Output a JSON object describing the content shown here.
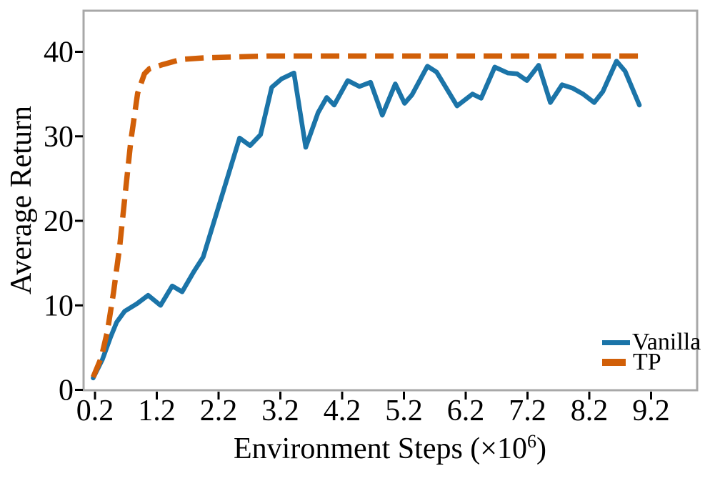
{
  "figure": {
    "background": "#ffffff",
    "frame_color": "#a8a8a8",
    "tick_color": "#000000",
    "text_color": "#000000"
  },
  "axis": {
    "ylabel": "Average Return",
    "xlabel_prefix": "Environment Steps (×10",
    "xlabel_sup": "6",
    "xlabel_suffix": ")"
  },
  "legend": {
    "items": [
      {
        "label": "Vanilla",
        "color": "#1b74a8",
        "style": "solid"
      },
      {
        "label": "TP",
        "color": "#d15f08",
        "style": "dashed"
      }
    ]
  },
  "chart_data": {
    "type": "line",
    "title": "",
    "xlabel": "Environment Steps (×10^6)",
    "ylabel": "Average Return",
    "xlim": [
      0.0,
      10.0
    ],
    "ylim": [
      0,
      44.9
    ],
    "xticks": [
      0.2,
      1.2,
      2.2,
      3.2,
      4.2,
      5.2,
      6.2,
      7.2,
      8.2,
      9.2
    ],
    "yticks": [
      0,
      10,
      20,
      30,
      40
    ],
    "grid": false,
    "legend_position": "lower right",
    "series": [
      {
        "name": "Vanilla",
        "color": "#1b74a8",
        "style": "solid",
        "line_width": 6.5,
        "points": [
          [
            0.17,
            1.4
          ],
          [
            0.32,
            3.6
          ],
          [
            0.45,
            6.2
          ],
          [
            0.55,
            8.0
          ],
          [
            0.68,
            9.3
          ],
          [
            0.88,
            10.2
          ],
          [
            1.06,
            11.2
          ],
          [
            1.26,
            10.0
          ],
          [
            1.45,
            12.3
          ],
          [
            1.61,
            11.6
          ],
          [
            1.8,
            14.0
          ],
          [
            1.95,
            15.7
          ],
          [
            2.54,
            29.8
          ],
          [
            2.71,
            28.9
          ],
          [
            2.88,
            30.2
          ],
          [
            3.06,
            35.8
          ],
          [
            3.22,
            36.8
          ],
          [
            3.42,
            37.5
          ],
          [
            3.61,
            28.7
          ],
          [
            3.81,
            32.8
          ],
          [
            3.95,
            34.6
          ],
          [
            4.07,
            33.7
          ],
          [
            4.29,
            36.6
          ],
          [
            4.48,
            35.9
          ],
          [
            4.66,
            36.4
          ],
          [
            4.85,
            32.5
          ],
          [
            5.06,
            36.2
          ],
          [
            5.21,
            33.9
          ],
          [
            5.33,
            34.9
          ],
          [
            5.58,
            38.3
          ],
          [
            5.73,
            37.6
          ],
          [
            6.06,
            33.6
          ],
          [
            6.31,
            35.0
          ],
          [
            6.45,
            34.5
          ],
          [
            6.67,
            38.2
          ],
          [
            6.88,
            37.5
          ],
          [
            7.03,
            37.4
          ],
          [
            7.19,
            36.6
          ],
          [
            7.38,
            38.4
          ],
          [
            7.57,
            34.0
          ],
          [
            7.76,
            36.1
          ],
          [
            7.93,
            35.7
          ],
          [
            8.1,
            35.0
          ],
          [
            8.28,
            34.0
          ],
          [
            8.42,
            35.3
          ],
          [
            8.64,
            38.9
          ],
          [
            8.78,
            37.7
          ],
          [
            9.01,
            33.7
          ]
        ]
      },
      {
        "name": "TP",
        "color": "#d15f08",
        "style": "dashed",
        "line_width": 7.5,
        "dash": [
          26,
          12
        ],
        "points": [
          [
            0.17,
            1.5
          ],
          [
            0.3,
            3.8
          ],
          [
            0.4,
            6.9
          ],
          [
            0.5,
            11.5
          ],
          [
            0.6,
            17.0
          ],
          [
            0.7,
            24.0
          ],
          [
            0.78,
            29.5
          ],
          [
            0.89,
            35.1
          ],
          [
            1.0,
            37.4
          ],
          [
            1.08,
            38.0
          ],
          [
            1.3,
            38.5
          ],
          [
            1.6,
            39.1
          ],
          [
            2.0,
            39.3
          ],
          [
            2.5,
            39.4
          ],
          [
            3.0,
            39.5
          ],
          [
            9.03,
            39.5
          ]
        ]
      }
    ]
  }
}
